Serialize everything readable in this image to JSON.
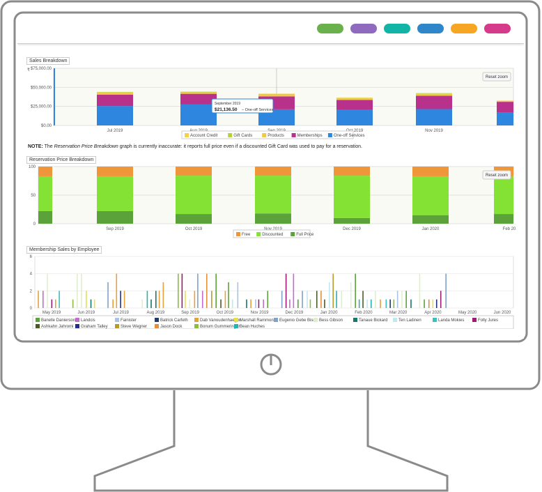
{
  "topbar": {
    "pills": [
      "#6ab04c",
      "#8e6bbf",
      "#12b5a5",
      "#2f86c9",
      "#f6a623",
      "#d63a8a"
    ]
  },
  "sales": {
    "title": "Sales Breakdown",
    "reset_zoom": "Reset zoom",
    "tooltip": {
      "date": "September 2019",
      "amount": "$21,136.50",
      "series": "One-off Services"
    },
    "legend": [
      {
        "label": "Account Credit",
        "color": "#f6d04d"
      },
      {
        "label": "Gift Cards",
        "color": "#b7d043"
      },
      {
        "label": "Products",
        "color": "#f2c945"
      },
      {
        "label": "Memberships",
        "color": "#b8318a"
      },
      {
        "label": "One-off Services",
        "color": "#2f86de"
      }
    ]
  },
  "note": {
    "prefix": "NOTE:",
    "text1": " The ",
    "graph": "Reservation Price Breakdown",
    "text2": " graph is currently inaccurate: it reports full price even if a discounted Gift Card was used to pay for a reservation."
  },
  "reservation": {
    "title": "Reservation Price Breakdown",
    "reset_zoom": "Reset zoom",
    "legend": [
      {
        "label": "Free",
        "color": "#f0963a"
      },
      {
        "label": "Discounted",
        "color": "#84e234"
      },
      {
        "label": "Full Price",
        "color": "#5ca23a"
      }
    ]
  },
  "membership": {
    "title": "Membership Sales by Employee",
    "legend": [
      {
        "label": "Banelle Danierson",
        "color": "#5ca23a"
      },
      {
        "label": "Landcis",
        "color": "#c46bd0"
      },
      {
        "label": "Fainister",
        "color": "#a7c3e6"
      },
      {
        "label": "Batrick Carfeth",
        "color": "#1f3b6e"
      },
      {
        "label": "Dab Vanoudenhaegen",
        "color": "#e6a03c"
      },
      {
        "label": "Marshall Rammone",
        "color": "#e4e24b"
      },
      {
        "label": "Eugenio Gebe Bise",
        "color": "#7fa2c9"
      },
      {
        "label": "Bess Gibson",
        "color": "#e0eecf"
      },
      {
        "label": "Tanaue Bickard",
        "color": "#14786b"
      },
      {
        "label": "Ten Ladinen",
        "color": "#bfe9ef"
      },
      {
        "label": "Landa Mokies",
        "color": "#3ac1c0"
      },
      {
        "label": "Folly Jures",
        "color": "#9b1b6f"
      },
      {
        "label": "Ashkahn Jahromi",
        "color": "#4b5a23"
      },
      {
        "label": "Graham Talley",
        "color": "#1f2f8a"
      },
      {
        "label": "Steve Wegner",
        "color": "#b79b2e"
      },
      {
        "label": "Jason Dock",
        "color": "#e48f3a"
      },
      {
        "label": "Bonum Gummeringer",
        "color": "#8dbc3e"
      },
      {
        "label": "Bean Huches",
        "color": "#26b3b8"
      }
    ]
  },
  "chart_data": [
    {
      "type": "bar",
      "title": "Sales Breakdown",
      "categories": [
        "Jul 2019",
        "Aug 2019",
        "Sep 2019",
        "Oct 2019",
        "Nov 2019"
      ],
      "ylim": [
        0,
        75000
      ],
      "yticks": [
        "$0.00",
        "$25,000.00",
        "$50,000.00",
        "$75,000.00"
      ],
      "series": [
        {
          "name": "One-off Services",
          "values": [
            25500,
            27500,
            21136.5,
            20500,
            21500
          ]
        },
        {
          "name": "Memberships",
          "values": [
            15000,
            14000,
            17000,
            13000,
            17500
          ]
        },
        {
          "name": "Products",
          "values": [
            2500,
            2000,
            2500,
            2000,
            2500
          ]
        },
        {
          "name": "Gift Cards",
          "values": [
            500,
            500,
            500,
            500,
            500
          ]
        },
        {
          "name": "Account Credit",
          "values": [
            500,
            500,
            500,
            500,
            500
          ]
        }
      ]
    },
    {
      "type": "bar",
      "title": "Reservation Price Breakdown",
      "categories": [
        "Sep 2019",
        "Oct 2019",
        "Nov 2019",
        "Dec 2019",
        "Jan 2020",
        "Feb 20"
      ],
      "ylim": [
        0,
        100
      ],
      "yticks": [
        "0",
        "50",
        "100"
      ],
      "series": [
        {
          "name": "Full Price",
          "values": [
            22,
            17,
            18,
            10,
            15,
            17
          ]
        },
        {
          "name": "Discounted",
          "values": [
            61,
            67,
            66,
            74,
            68,
            66
          ]
        },
        {
          "name": "Free",
          "values": [
            17,
            16,
            16,
            16,
            17,
            17
          ]
        }
      ]
    },
    {
      "type": "bar",
      "title": "Membership Sales by Employee",
      "categories": [
        "May 2019",
        "Jun 2019",
        "Jul 2019",
        "Aug 2019",
        "Sep 2019",
        "Oct 2019",
        "Nov 2019",
        "Dec 2019",
        "Jan 2020",
        "Feb 2020",
        "Mar 2020",
        "Apr 2020",
        "May 2020",
        "Jun 2020"
      ],
      "ylim": [
        0,
        6
      ],
      "yticks": [
        "0",
        "2",
        "4",
        "6"
      ]
    }
  ]
}
